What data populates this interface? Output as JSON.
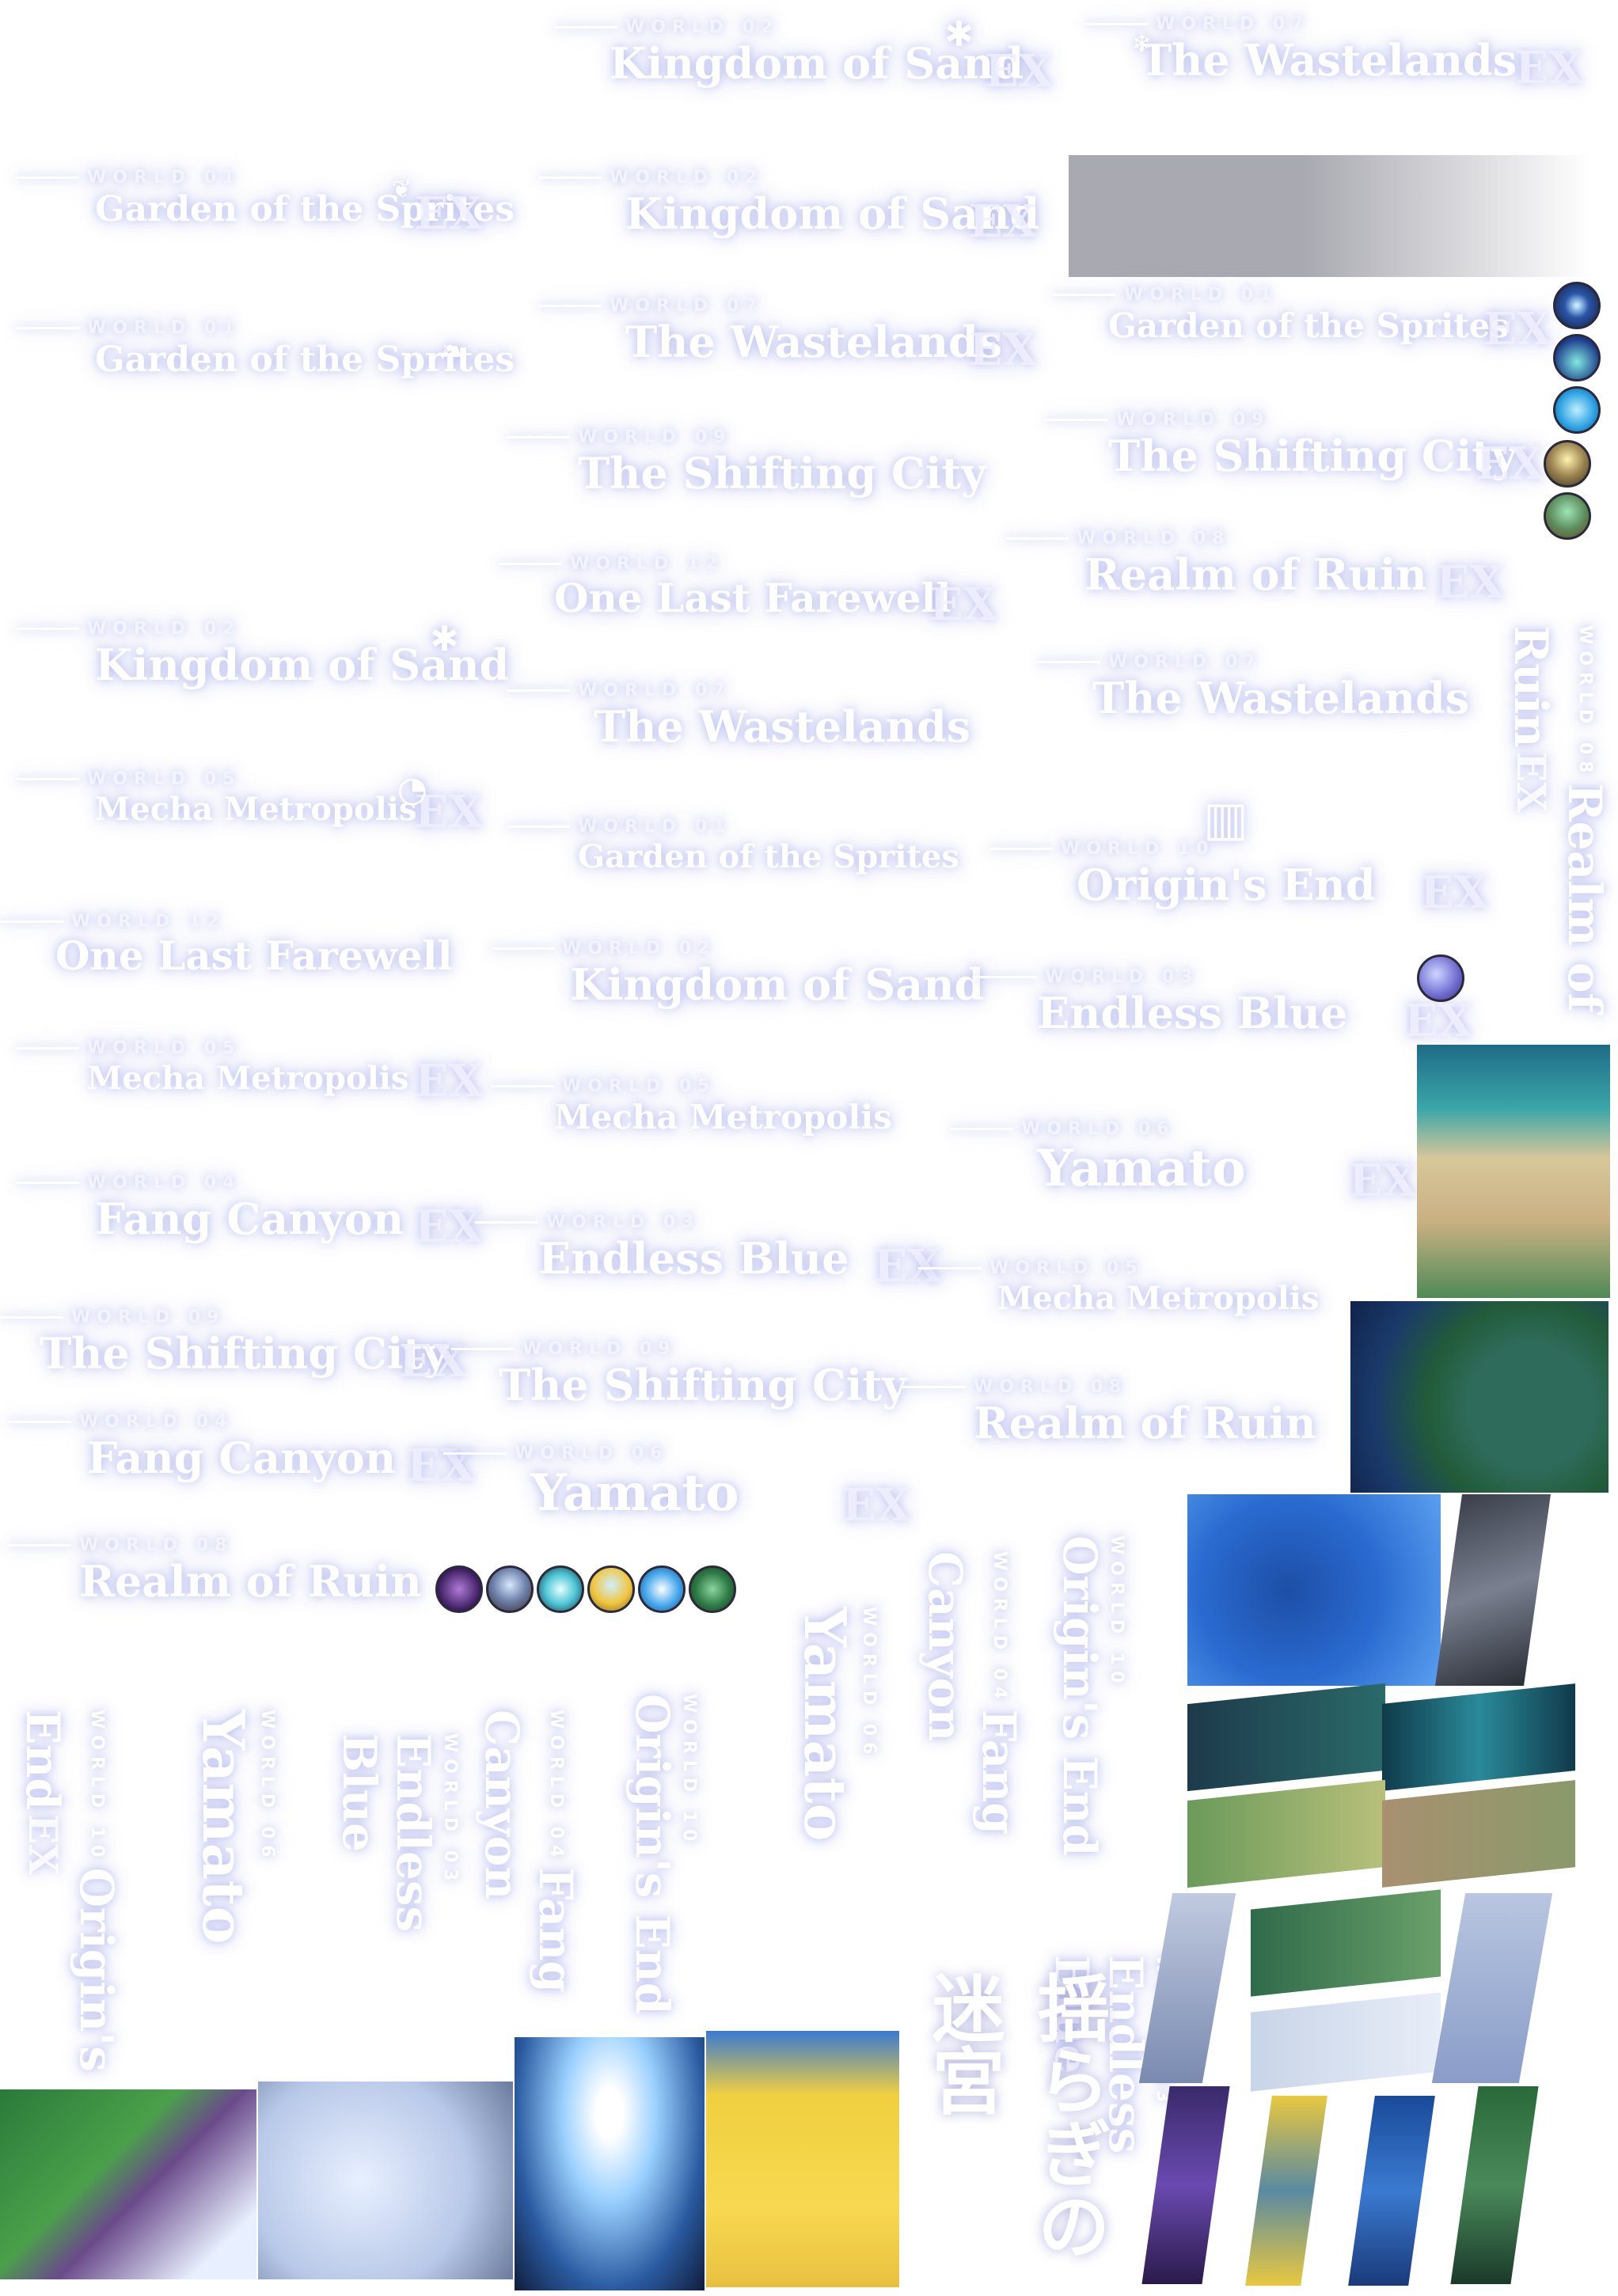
{
  "colors": {
    "background": "#ffffff",
    "glow": "#9ba3e8",
    "text": "#ffffff"
  },
  "worlds": {
    "w01": {
      "label": "WORLD 01",
      "name": "Garden of the Sprites"
    },
    "w02": {
      "label": "WORLD 02",
      "name": "Kingdom of Sand"
    },
    "w03": {
      "label": "WORLD 03",
      "name": "Endless Blue"
    },
    "w04": {
      "label": "WORLD 04",
      "name": "Fang Canyon"
    },
    "w05": {
      "label": "WORLD 05",
      "name": "Mecha Metropolis"
    },
    "w06": {
      "label": "WORLD 06",
      "name": "Yamato"
    },
    "w07": {
      "label": "WORLD 07",
      "name": "The Wastelands"
    },
    "w08": {
      "label": "WORLD 08",
      "name": "Realm of Ruin"
    },
    "w09": {
      "label": "WORLD 09",
      "name": "The Shifting City"
    },
    "w10": {
      "label": "WORLD 10",
      "name": "Origin's End"
    },
    "w12": {
      "label": "WORLD 12",
      "name": "One Last Farewell"
    }
  },
  "ex": "EX",
  "japanese_title": "揺らぎの迷宮",
  "icons": {
    "orbs": [
      "star-orb-icon",
      "wave-orb-icon",
      "crystal-orb-icon",
      "island-orb-icon",
      "forest-orb-icon",
      "dark-castle-orb-icon",
      "ship-orb-icon",
      "ice-orb-icon",
      "desert-orb-icon",
      "ocean-orb-icon",
      "jungle-orb-icon"
    ],
    "tiles": [
      "forest-island-map",
      "green-planet-map",
      "blue-ocean-map",
      "dark-pillar-strip",
      "green-pixel-map",
      "ice-city-map",
      "glowing-tower-map",
      "desert-oasis-map",
      "purple-strip",
      "yellow-strip",
      "blue-strip",
      "jungle-strip"
    ]
  }
}
